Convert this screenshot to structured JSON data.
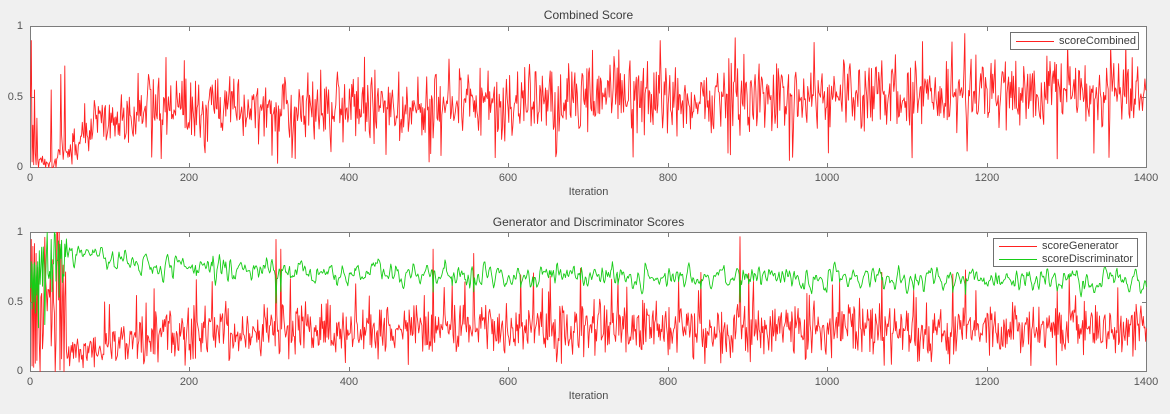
{
  "figure": {
    "background": "#f0f0f0",
    "plot_background": "#ffffff",
    "axis_color": "#7c7c7c",
    "tick_label_color": "#555555",
    "title_color": "#3c3c3c",
    "accent_red": "#ff2121",
    "accent_green": "#17cc17"
  },
  "chart_data": [
    {
      "type": "line",
      "title": "Combined Score",
      "xlabel": "Iteration",
      "xlim": [
        0,
        1400
      ],
      "ylim": [
        0,
        1
      ],
      "xticks": [
        0,
        200,
        400,
        600,
        800,
        1000,
        1200,
        1400
      ],
      "yticks": [
        0,
        0.5,
        1
      ],
      "grid": false,
      "legend_position": "northeast",
      "series": [
        {
          "name": "scoreCombined",
          "color": "#ff2121",
          "seed": 1337,
          "head": [
            0.5,
            0.9,
            0.04,
            0.3,
            0.02,
            0.55,
            0.1,
            0.02,
            0.35,
            0.06
          ],
          "envelope": [
            {
              "x": 0,
              "mean": 0.06,
              "amp": 0.05
            },
            {
              "x": 28,
              "mean": 0.04,
              "amp": 0.04
            },
            {
              "x": 46,
              "mean": 0.1,
              "amp": 0.08
            },
            {
              "x": 80,
              "mean": 0.3,
              "amp": 0.12
            },
            {
              "x": 140,
              "mean": 0.4,
              "amp": 0.14
            },
            {
              "x": 420,
              "mean": 0.44,
              "amp": 0.15
            },
            {
              "x": 820,
              "mean": 0.5,
              "amp": 0.16
            },
            {
              "x": 1400,
              "mean": 0.55,
              "amp": 0.15
            }
          ],
          "spikes": {
            "up_prob": 0.02,
            "up_extra": 0.2,
            "down_prob": 0.02,
            "down_level": 0.06
          },
          "forced": [
            [
              26,
              0.55
            ],
            [
              38,
              0.66
            ],
            [
              43,
              0.72
            ],
            [
              170,
              0.78
            ],
            [
              310,
              0.03
            ],
            [
              500,
              0.04
            ],
            [
              790,
              0.9
            ],
            [
              884,
              0.92
            ],
            [
              952,
              0.05
            ],
            [
              1172,
              0.95
            ]
          ]
        }
      ]
    },
    {
      "type": "line",
      "title": "Generator and Discriminator Scores",
      "xlabel": "Iteration",
      "xlim": [
        0,
        1400
      ],
      "ylim": [
        0,
        1
      ],
      "xticks": [
        0,
        200,
        400,
        600,
        800,
        1000,
        1200,
        1400
      ],
      "yticks": [
        0,
        0.5,
        1
      ],
      "grid": false,
      "legend_position": "northeast",
      "series": [
        {
          "name": "scoreGenerator",
          "color": "#ff2121",
          "seed": 99,
          "head": [
            0.5,
            0.95,
            0.04,
            0.9,
            0.03,
            0.92,
            0.06,
            0.85,
            0.08,
            0.75
          ],
          "envelope": [
            {
              "x": 0,
              "mean": 0.5,
              "amp": 0.5
            },
            {
              "x": 38,
              "mean": 0.5,
              "amp": 0.5
            },
            {
              "x": 48,
              "mean": 0.12,
              "amp": 0.06
            },
            {
              "x": 95,
              "mean": 0.18,
              "amp": 0.08
            },
            {
              "x": 170,
              "mean": 0.27,
              "amp": 0.11
            },
            {
              "x": 620,
              "mean": 0.31,
              "amp": 0.12
            },
            {
              "x": 1400,
              "mean": 0.3,
              "amp": 0.11
            }
          ],
          "spikes": {
            "up_prob": 0.04,
            "up_extra": 0.3,
            "down_prob": 0.02,
            "down_level": 0.04
          },
          "forced": [
            [
              308,
              0.95
            ],
            [
              314,
              0.88
            ],
            [
              505,
              0.88
            ],
            [
              556,
              0.85
            ],
            [
              890,
              0.97
            ],
            [
              1395,
              0.33
            ],
            [
              1398,
              0.32
            ],
            [
              1400,
              0.31
            ]
          ]
        },
        {
          "name": "scoreDiscriminator",
          "color": "#17cc17",
          "seed": 7,
          "smooth": 2,
          "smooth_from": 46,
          "head": [
            0.6,
            0.97,
            0.45,
            0.93,
            0.5,
            0.95,
            0.42,
            0.9,
            0.55,
            0.88
          ],
          "envelope": [
            {
              "x": 0,
              "mean": 0.75,
              "amp": 0.27
            },
            {
              "x": 38,
              "mean": 0.8,
              "amp": 0.2
            },
            {
              "x": 60,
              "mean": 0.85,
              "amp": 0.1
            },
            {
              "x": 140,
              "mean": 0.76,
              "amp": 0.11
            },
            {
              "x": 330,
              "mean": 0.72,
              "amp": 0.11
            },
            {
              "x": 700,
              "mean": 0.69,
              "amp": 0.11
            },
            {
              "x": 1400,
              "mean": 0.665,
              "amp": 0.11
            }
          ],
          "spikes": {
            "up_prob": 0,
            "up_extra": 0,
            "down_prob": 0,
            "down_level": 0
          },
          "couple": {
            "with": "scoreGenerator",
            "k": 0.45,
            "threshold": 0.55
          }
        }
      ]
    }
  ]
}
